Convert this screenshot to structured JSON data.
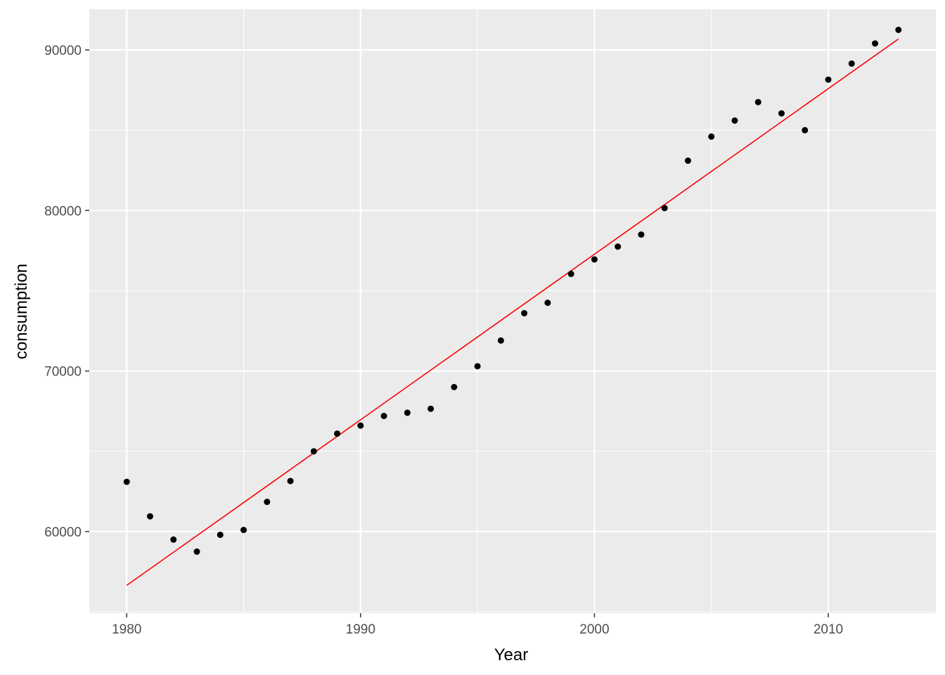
{
  "chart_data": {
    "type": "scatter",
    "xlabel": "Year",
    "ylabel": "consumption",
    "xlim": [
      1978.4,
      2014.6
    ],
    "ylim": [
      54920,
      92540
    ],
    "x_ticks": [
      1980,
      1990,
      2000,
      2010
    ],
    "x_minor_ticks": [
      1985,
      1995,
      2005
    ],
    "y_ticks": [
      60000,
      70000,
      80000,
      90000
    ],
    "y_minor_ticks": [
      55000,
      65000,
      75000,
      85000
    ],
    "x_tick_labels": [
      "1980",
      "1990",
      "2000",
      "2010"
    ],
    "y_tick_labels": [
      "60000",
      "70000",
      "80000",
      "90000"
    ],
    "grid": true,
    "panel_color": "#ebebeb",
    "grid_color": "#ffffff",
    "point_color": "#000000",
    "fit_line": {
      "color": "#ff0000",
      "x": [
        1980,
        2013
      ],
      "y": [
        56650,
        90680
      ]
    },
    "series": [
      {
        "x": [
          1980,
          1981,
          1982,
          1983,
          1984,
          1985,
          1986,
          1987,
          1988,
          1989,
          1990,
          1991,
          1992,
          1993,
          1994,
          1995,
          1996,
          1997,
          1998,
          1999,
          2000,
          2001,
          2002,
          2003,
          2004,
          2005,
          2006,
          2007,
          2008,
          2009,
          2010,
          2011,
          2012,
          2013
        ],
        "y": [
          63100,
          60950,
          59500,
          58750,
          59800,
          60100,
          61850,
          63150,
          65000,
          66100,
          66600,
          67200,
          67400,
          67650,
          69000,
          70300,
          71900,
          73600,
          74250,
          76050,
          76950,
          77750,
          78500,
          80150,
          83100,
          84600,
          85600,
          86750,
          86050,
          85000,
          88150,
          89150,
          90400,
          91250
        ]
      }
    ]
  }
}
